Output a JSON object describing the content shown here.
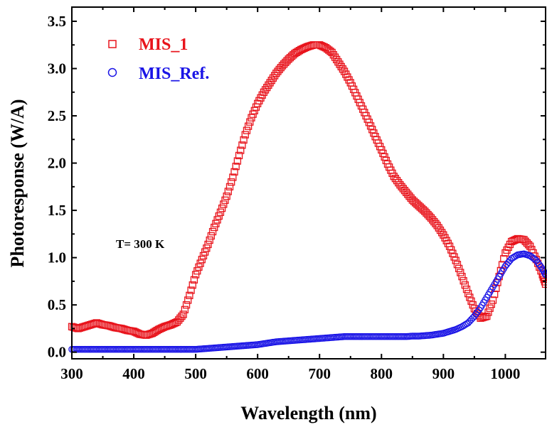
{
  "chart_data": {
    "type": "scatter",
    "xlabel": "Wavelength (nm)",
    "ylabel": "Photoresponse (W/A)",
    "xlim": [
      300,
      1065
    ],
    "ylim": [
      -0.07,
      3.65
    ],
    "x_ticks": [
      300,
      400,
      500,
      600,
      700,
      800,
      900,
      1000
    ],
    "x_tick_labels": [
      "300",
      "400",
      "500",
      "600",
      "700",
      "800",
      "900",
      "1000"
    ],
    "y_ticks": [
      0.0,
      0.5,
      1.0,
      1.5,
      2.0,
      2.5,
      3.0,
      3.5
    ],
    "y_tick_labels": [
      "0.0",
      "0.5",
      "1.0",
      "1.5",
      "2.0",
      "2.5",
      "3.0",
      "3.5"
    ],
    "grid": false,
    "legend_position": "top-left",
    "annotation": "T= 300 K",
    "series": [
      {
        "name": "MIS_1",
        "marker": "square",
        "color": "#e8141c",
        "x": [
          300,
          310,
          320,
          330,
          340,
          350,
          360,
          370,
          380,
          390,
          400,
          410,
          420,
          430,
          440,
          450,
          460,
          470,
          480,
          490,
          500,
          510,
          520,
          530,
          540,
          550,
          560,
          570,
          580,
          590,
          600,
          610,
          620,
          630,
          640,
          650,
          660,
          670,
          680,
          690,
          700,
          710,
          720,
          730,
          740,
          750,
          760,
          770,
          780,
          790,
          800,
          810,
          820,
          830,
          840,
          850,
          860,
          870,
          880,
          890,
          900,
          910,
          920,
          930,
          940,
          950,
          960,
          970,
          980,
          990,
          1000,
          1010,
          1020,
          1030,
          1040,
          1050,
          1060,
          1065
        ],
        "values": [
          0.27,
          0.25,
          0.27,
          0.29,
          0.31,
          0.29,
          0.28,
          0.26,
          0.25,
          0.23,
          0.22,
          0.19,
          0.18,
          0.2,
          0.24,
          0.27,
          0.29,
          0.32,
          0.4,
          0.6,
          0.82,
          0.98,
          1.14,
          1.32,
          1.48,
          1.65,
          1.85,
          2.08,
          2.3,
          2.48,
          2.63,
          2.75,
          2.85,
          2.95,
          3.03,
          3.1,
          3.16,
          3.2,
          3.23,
          3.25,
          3.25,
          3.22,
          3.17,
          3.07,
          2.97,
          2.85,
          2.71,
          2.57,
          2.43,
          2.28,
          2.14,
          1.99,
          1.86,
          1.77,
          1.69,
          1.61,
          1.55,
          1.49,
          1.42,
          1.34,
          1.24,
          1.12,
          0.97,
          0.8,
          0.62,
          0.46,
          0.36,
          0.38,
          0.55,
          0.8,
          1.05,
          1.17,
          1.2,
          1.19,
          1.12,
          0.98,
          0.82,
          0.72
        ]
      },
      {
        "name": "MIS_Ref.",
        "marker": "circle",
        "color": "#1a14e6",
        "x": [
          300,
          310,
          320,
          330,
          340,
          350,
          360,
          370,
          380,
          390,
          400,
          410,
          420,
          430,
          440,
          450,
          460,
          470,
          480,
          490,
          500,
          510,
          520,
          530,
          540,
          550,
          560,
          570,
          580,
          590,
          600,
          610,
          620,
          630,
          640,
          650,
          660,
          670,
          680,
          690,
          700,
          710,
          720,
          730,
          740,
          750,
          760,
          770,
          780,
          790,
          800,
          810,
          820,
          830,
          840,
          850,
          860,
          870,
          880,
          890,
          900,
          910,
          920,
          930,
          940,
          950,
          960,
          970,
          980,
          990,
          1000,
          1010,
          1020,
          1030,
          1040,
          1050,
          1060,
          1065
        ],
        "values": [
          0.03,
          0.03,
          0.03,
          0.03,
          0.03,
          0.03,
          0.03,
          0.03,
          0.03,
          0.03,
          0.03,
          0.03,
          0.03,
          0.03,
          0.03,
          0.03,
          0.03,
          0.03,
          0.03,
          0.03,
          0.03,
          0.035,
          0.04,
          0.045,
          0.05,
          0.055,
          0.06,
          0.065,
          0.07,
          0.075,
          0.08,
          0.09,
          0.1,
          0.11,
          0.115,
          0.12,
          0.125,
          0.13,
          0.135,
          0.14,
          0.145,
          0.15,
          0.155,
          0.16,
          0.165,
          0.165,
          0.165,
          0.165,
          0.165,
          0.165,
          0.165,
          0.165,
          0.165,
          0.165,
          0.165,
          0.17,
          0.17,
          0.175,
          0.18,
          0.19,
          0.2,
          0.22,
          0.24,
          0.27,
          0.31,
          0.38,
          0.47,
          0.58,
          0.69,
          0.8,
          0.91,
          0.99,
          1.03,
          1.04,
          1.02,
          0.97,
          0.88,
          0.82
        ]
      }
    ]
  }
}
